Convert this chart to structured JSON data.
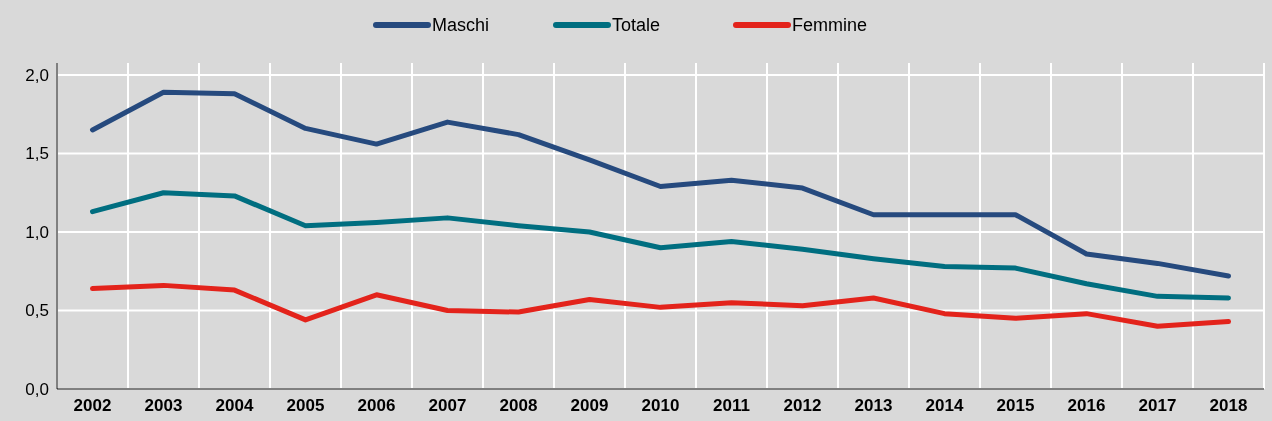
{
  "chart_data": {
    "type": "line",
    "categories": [
      "2002",
      "2003",
      "2004",
      "2005",
      "2006",
      "2007",
      "2008",
      "2009",
      "2010",
      "2011",
      "2012",
      "2013",
      "2014",
      "2015",
      "2016",
      "2017",
      "2018"
    ],
    "series": [
      {
        "name": "Maschi",
        "color": "#264a7e",
        "values": [
          1.65,
          1.89,
          1.88,
          1.66,
          1.56,
          1.7,
          1.62,
          1.46,
          1.29,
          1.33,
          1.28,
          1.11,
          1.11,
          1.11,
          0.86,
          0.8,
          0.72
        ]
      },
      {
        "name": "Totale",
        "color": "#006e80",
        "values": [
          1.13,
          1.25,
          1.23,
          1.04,
          1.06,
          1.09,
          1.04,
          1.0,
          0.9,
          0.94,
          0.89,
          0.83,
          0.78,
          0.77,
          0.67,
          0.59,
          0.58
        ]
      },
      {
        "name": "Femmine",
        "color": "#e3231b",
        "values": [
          0.64,
          0.66,
          0.63,
          0.44,
          0.6,
          0.5,
          0.49,
          0.57,
          0.52,
          0.55,
          0.53,
          0.58,
          0.48,
          0.45,
          0.48,
          0.4,
          0.43
        ]
      }
    ],
    "ylim": [
      0,
      2
    ],
    "yticks": [
      {
        "value": 0,
        "label": "0,0"
      },
      {
        "value": 0.5,
        "label": "0,5"
      },
      {
        "value": 1,
        "label": "1,0"
      },
      {
        "value": 1.5,
        "label": "1,5"
      },
      {
        "value": 2,
        "label": "2,0"
      }
    ],
    "grid": true,
    "legend": "top"
  }
}
